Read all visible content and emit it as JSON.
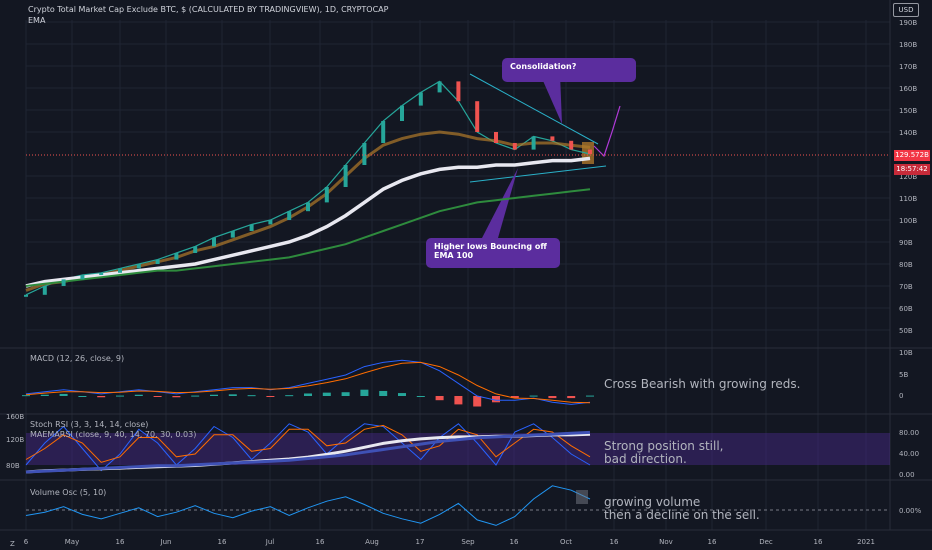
{
  "title": "Crypto Total Market Cap Exclude BTC, $ (CALCULATED BY TRADINGVIEW), 1D, CRYPTOCAP",
  "ema_label": "EMA",
  "currency": "USD",
  "price_axis": [
    "190B",
    "180B",
    "170B",
    "160B",
    "150B",
    "140B",
    "120B",
    "110B",
    "100B",
    "90B",
    "80B",
    "70B",
    "60B",
    "50B"
  ],
  "last_price": "129.572B",
  "countdown": "18:57:42",
  "time_axis": [
    "6",
    "May",
    "16",
    "Jun",
    "16",
    "Jul",
    "16",
    "Aug",
    "17",
    "Sep",
    "16",
    "Oct",
    "16",
    "Nov",
    "16",
    "Dec",
    "16",
    "2021"
  ],
  "corner_z": "Z",
  "annotations": {
    "consolidation": "Consolidation?",
    "higher_lows": "Higher lows Bouncing off EMA 100"
  },
  "indicators": {
    "macd": {
      "label": "MACD (12, 26, close, 9)",
      "axis": [
        "10B",
        "5B",
        "0"
      ],
      "note": "Cross Bearish with growing reds."
    },
    "stoch": {
      "label": "Stoch RSI (3, 3, 14, 14, close)",
      "label2": "MAEMARSI (close, 9, 40, 14, 70, 30, 0.03)",
      "axis": [
        "80.00",
        "40.00",
        "0.00"
      ],
      "left_axis": [
        "160B",
        "120B",
        "80B"
      ],
      "note_line1": "Strong position still,",
      "note_line2": "bad direction."
    },
    "volume": {
      "label": "Volume Osc (5, 10)",
      "axis": [
        "0.00%"
      ],
      "note_line1": "growing volume",
      "note_line2": "then a decline on the sell."
    }
  },
  "chart_data": {
    "type": "line",
    "x_ticks": [
      "6",
      "May",
      "16",
      "Jun",
      "16",
      "Jul",
      "16",
      "Aug",
      "17",
      "Sep",
      "16",
      "Oct",
      "16",
      "Nov",
      "16",
      "Dec",
      "16",
      "2021"
    ],
    "y_ticks": [
      "190B",
      "180B",
      "170B",
      "160B",
      "150B",
      "140B",
      "120B",
      "110B",
      "100B",
      "90B",
      "80B",
      "70B",
      "60B",
      "50B"
    ],
    "series": [
      {
        "values": [
          66,
          70,
          73,
          75,
          76,
          78,
          80,
          82,
          85,
          88,
          92,
          95,
          98,
          100,
          104,
          108,
          115,
          125,
          135,
          145,
          152,
          158,
          163,
          154,
          140,
          135,
          132,
          138,
          136,
          132,
          130
        ],
        "color": "#26a69a"
      },
      {
        "values": [
          68,
          71,
          72,
          74,
          75,
          77,
          79,
          81,
          83,
          86,
          88,
          91,
          94,
          97,
          101,
          106,
          112,
          120,
          128,
          134,
          137,
          139,
          140,
          139,
          137,
          136,
          134,
          135,
          135,
          134,
          133
        ],
        "color": "#b07a2a"
      },
      {
        "values": [
          70,
          72,
          73,
          74,
          75,
          76,
          77,
          78,
          79,
          80,
          82,
          84,
          86,
          88,
          90,
          93,
          97,
          102,
          108,
          114,
          118,
          121,
          123,
          124,
          124,
          125,
          125,
          126,
          127,
          127,
          128
        ],
        "color": "#e8e8f0"
      },
      {
        "values": [
          70,
          71,
          72,
          73,
          74,
          75,
          76,
          77,
          77,
          78,
          79,
          80,
          81,
          82,
          83,
          85,
          87,
          89,
          92,
          95,
          98,
          101,
          104,
          106,
          108,
          109,
          110,
          111,
          112,
          113,
          114
        ],
        "color": "#2e8b3d"
      }
    ],
    "last_price": 129.572,
    "grid": true,
    "macd": {
      "macd": [
        0.5,
        1,
        1.5,
        1,
        0.5,
        1,
        1.5,
        1,
        0.5,
        1,
        1.5,
        2,
        2,
        1.5,
        2,
        3,
        4,
        5,
        7,
        8,
        8.5,
        8,
        6,
        3,
        0,
        -1,
        -1,
        -0.5,
        -1.5,
        -2,
        -1.5
      ],
      "signal": [
        0.3,
        0.7,
        1,
        1,
        0.8,
        0.9,
        1.2,
        1.1,
        0.8,
        0.9,
        1.2,
        1.6,
        1.8,
        1.6,
        1.8,
        2.4,
        3.2,
        4.1,
        5.5,
        6.8,
        7.8,
        8,
        7,
        5,
        2.5,
        0.5,
        -0.5,
        -0.6,
        -1,
        -1.5,
        -1.6
      ],
      "hist": [
        0.2,
        0.3,
        0.5,
        0,
        -0.3,
        0.1,
        0.3,
        -0.1,
        -0.3,
        0.1,
        0.3,
        0.4,
        0.2,
        -0.1,
        0.2,
        0.6,
        0.8,
        0.9,
        1.5,
        1.2,
        0.7,
        0,
        -1,
        -2,
        -2.5,
        -1.5,
        -0.5,
        0.1,
        -0.5,
        -0.5,
        0.1
      ]
    },
    "stoch_rsi": {
      "k": [
        20,
        60,
        90,
        50,
        10,
        40,
        85,
        60,
        20,
        50,
        90,
        70,
        30,
        60,
        95,
        80,
        40,
        70,
        95,
        90,
        60,
        30,
        70,
        95,
        60,
        20,
        80,
        95,
        70,
        40,
        20
      ],
      "d": [
        30,
        50,
        75,
        60,
        25,
        35,
        70,
        70,
        35,
        40,
        75,
        75,
        45,
        50,
        85,
        85,
        55,
        60,
        85,
        92,
        75,
        45,
        55,
        85,
        75,
        35,
        60,
        85,
        80,
        55,
        35
      ]
    },
    "volume_osc": [
      -5,
      -2,
      3,
      -4,
      -8,
      -3,
      2,
      -6,
      -2,
      4,
      -3,
      -7,
      -1,
      3,
      -5,
      2,
      8,
      12,
      5,
      -3,
      -8,
      -12,
      -4,
      6,
      -9,
      -14,
      -6,
      10,
      22,
      18,
      10
    ]
  }
}
